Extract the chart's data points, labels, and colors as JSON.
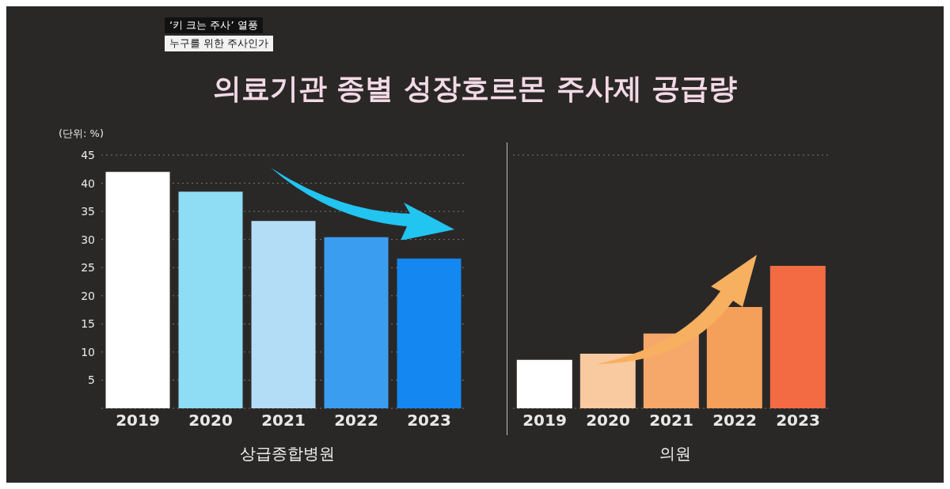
{
  "chart_data": [
    {
      "type": "bar",
      "title": "의료기관 종별 성장호르몬 주사제 공급량",
      "annotations": [
        "‘키 크는 주사’ 열풍",
        "누구를 위한 주사인가"
      ],
      "ylabel": "(단위: %)",
      "xlabel": "상급종합병원",
      "categories": [
        "2019",
        "2020",
        "2021",
        "2022",
        "2023"
      ],
      "values": [
        42,
        38.5,
        33.3,
        30.4,
        26.6
      ],
      "colors": [
        "#ffffff",
        "#8fdcf5",
        "#b3dcf7",
        "#3a9df0",
        "#1488f0"
      ],
      "ylim": [
        0,
        45
      ],
      "yticks": [
        5,
        10,
        15,
        20,
        25,
        30,
        35,
        40,
        45
      ],
      "grid": "y"
    },
    {
      "type": "bar",
      "xlabel": "의원",
      "categories": [
        "2019",
        "2020",
        "2021",
        "2022",
        "2023"
      ],
      "values": [
        8.6,
        9.7,
        13.3,
        18,
        25.3
      ],
      "colors": [
        "#ffffff",
        "#f9c9a0",
        "#f6a86a",
        "#f5a05a",
        "#f26b42"
      ],
      "ylim": [
        0,
        45
      ],
      "yticks": [
        5,
        10,
        15,
        20,
        25,
        30,
        35,
        40,
        45
      ],
      "grid": "y",
      "tick_labels": "x"
    }
  ]
}
